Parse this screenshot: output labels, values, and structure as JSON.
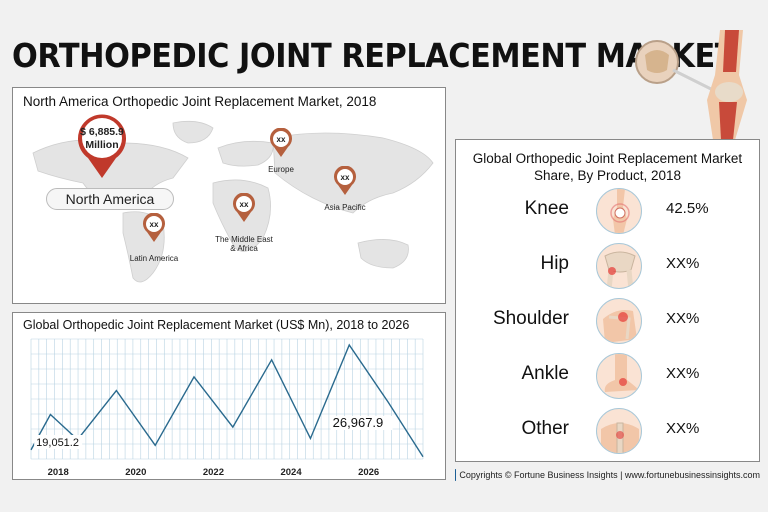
{
  "title": "ORTHOPEDIC JOINT REPLACEMENT MARKET",
  "map": {
    "title": "North America Orthopedic Joint Replacement Market, 2018",
    "north_america_value": "$ 6,885.9",
    "north_america_unit": "Million",
    "north_america_label": "North America",
    "regions": [
      {
        "name": "Europe",
        "value": "xx"
      },
      {
        "name": "Asia Pacific",
        "value": "xx"
      },
      {
        "name": "The Middle East",
        "name2": "& Africa",
        "value": "xx"
      },
      {
        "name": "Latin America",
        "value": "xx"
      }
    ]
  },
  "share": {
    "title": "Global Orthopedic Joint Replacement Market Share, By Product, 2018",
    "products": [
      {
        "name": "Knee",
        "value": "42.5%",
        "icon": "knee-icon"
      },
      {
        "name": "Hip",
        "value": "XX%",
        "icon": "hip-icon"
      },
      {
        "name": "Shoulder",
        "value": "XX%",
        "icon": "shoulder-icon"
      },
      {
        "name": "Ankle",
        "value": "XX%",
        "icon": "ankle-icon"
      },
      {
        "name": "Other",
        "value": "XX%",
        "icon": "spine-icon"
      }
    ]
  },
  "chart_data": {
    "type": "line",
    "title": "Global Orthopedic Joint Replacement Market (US$ Mn), 2018 to 2026",
    "x_tick_labels": [
      "2018",
      "2020",
      "2022",
      "2024",
      "2026"
    ],
    "x": [
      2017.3,
      2017.8,
      2018.5,
      2019.5,
      2020.5,
      2021.5,
      2022.5,
      2023.5,
      2024.5,
      2025.5,
      2026.5,
      2027.4
    ],
    "values": [
      0.08,
      0.39,
      0.17,
      0.6,
      0.12,
      0.72,
      0.28,
      0.87,
      0.18,
      1.0,
      0.5,
      0.02
    ],
    "data_labels": [
      {
        "x": 2018,
        "text": "19,051.2"
      },
      {
        "x": 2026,
        "text": "26,967.9"
      }
    ],
    "grid": true,
    "line_color": "#2a6a8e"
  },
  "footer": {
    "text": "Copyrights © Fortune Business Insights | www.fortunebusinessinsights.com"
  },
  "colors": {
    "accent_red": "#c0392b",
    "pin_brown": "#b5603e",
    "line_blue": "#2a6a8e",
    "grid_blue": "#b9d3e2"
  }
}
